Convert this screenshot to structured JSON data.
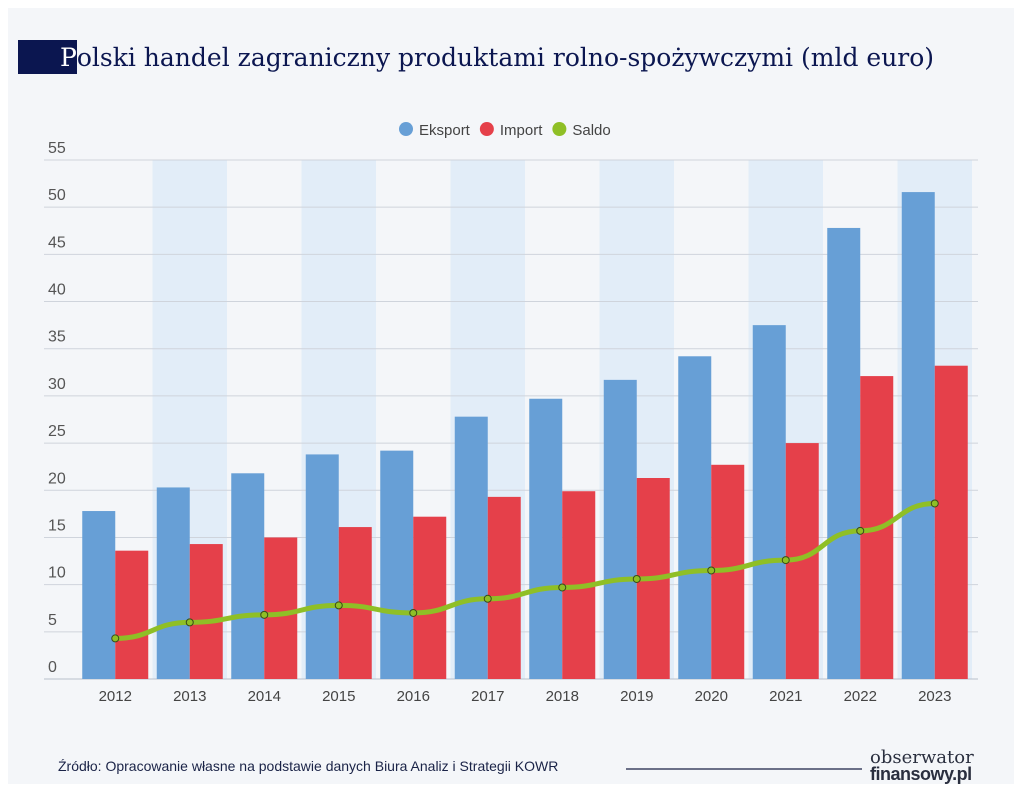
{
  "title_initial": "P",
  "title_rest": "olski handel zagraniczny produktami rolno-spożywczymi (mld euro)",
  "source": "Źródło: Opracowanie własne na podstawie danych Biura Analiz i Strategii KOWR",
  "logo": {
    "line1": "obserwator",
    "line2": "finansowy.pl"
  },
  "chart_data": {
    "type": "bar",
    "title": "Polski handel zagraniczny produktami rolno-spożywczymi (mld euro)",
    "categories": [
      "2012",
      "2013",
      "2014",
      "2015",
      "2016",
      "2017",
      "2018",
      "2019",
      "2020",
      "2021",
      "2022",
      "2023"
    ],
    "series": [
      {
        "name": "Eksport",
        "type": "bar",
        "color": "#679fd6",
        "values": [
          17.8,
          20.3,
          21.8,
          23.8,
          24.2,
          27.8,
          29.7,
          31.7,
          34.2,
          37.5,
          47.8,
          51.6
        ]
      },
      {
        "name": "Import",
        "type": "bar",
        "color": "#e5404a",
        "values": [
          13.6,
          14.3,
          15.0,
          16.1,
          17.2,
          19.3,
          19.9,
          21.3,
          22.7,
          25.0,
          32.1,
          33.2
        ]
      },
      {
        "name": "Saldo",
        "type": "line",
        "color": "#8fbf26",
        "values": [
          4.3,
          6.0,
          6.8,
          7.8,
          7.0,
          8.5,
          9.7,
          10.6,
          11.5,
          12.6,
          15.7,
          18.6
        ]
      }
    ],
    "yticks": [
      "0",
      "5",
      "10",
      "15",
      "20",
      "25",
      "30",
      "35",
      "40",
      "45",
      "50",
      "55"
    ],
    "ylim": [
      0,
      55
    ],
    "grid": true,
    "legend": "top-center"
  }
}
